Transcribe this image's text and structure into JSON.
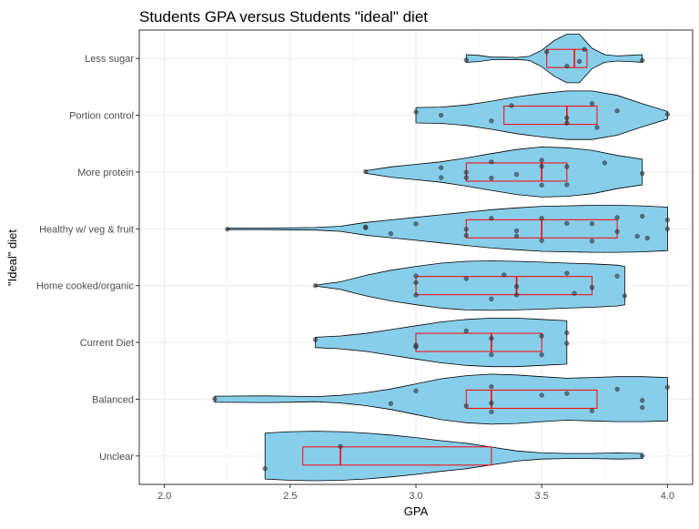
{
  "chart_data": {
    "type": "violin",
    "title": "Students GPA versus Students \"ideal\" diet",
    "xlabel": "GPA",
    "ylabel": "\"Ideal\" diet",
    "xlim": [
      1.9,
      4.1
    ],
    "x_ticks": [
      "2.0",
      "2.5",
      "3.0",
      "3.5",
      "4.0"
    ],
    "grid": true,
    "colors": {
      "violin_fill": "#87CEEB",
      "violin_stroke": "#000000",
      "box": "#FF0000",
      "point": "#333333",
      "grid": "#EBEBEB",
      "panel_border": "#333333"
    },
    "categories": [
      "Less sugar",
      "Portion control",
      "More protein",
      "Healthy w/ veg & fruit",
      "Home cooked/organic",
      "Current Diet",
      "Balanced",
      "Unclear"
    ],
    "groups": [
      {
        "category": "Less sugar",
        "box": {
          "q1": 3.52,
          "median": 3.63,
          "q3": 3.68
        },
        "density": [
          [
            3.2,
            0.15
          ],
          [
            3.25,
            0.12
          ],
          [
            3.3,
            0.05
          ],
          [
            3.35,
            0.05
          ],
          [
            3.4,
            0.04
          ],
          [
            3.45,
            0.08
          ],
          [
            3.5,
            0.32
          ],
          [
            3.55,
            0.7
          ],
          [
            3.6,
            0.95
          ],
          [
            3.65,
            0.95
          ],
          [
            3.7,
            0.4
          ],
          [
            3.75,
            0.15
          ],
          [
            3.8,
            0.1
          ],
          [
            3.85,
            0.12
          ],
          [
            3.9,
            0.15
          ]
        ],
        "points": [
          3.2,
          3.52,
          3.6,
          3.65,
          3.67,
          3.9
        ]
      },
      {
        "category": "Portion control",
        "box": {
          "q1": 3.35,
          "median": 3.6,
          "q3": 3.72
        },
        "density": [
          [
            3.0,
            0.3
          ],
          [
            3.1,
            0.32
          ],
          [
            3.2,
            0.4
          ],
          [
            3.3,
            0.55
          ],
          [
            3.4,
            0.72
          ],
          [
            3.5,
            0.85
          ],
          [
            3.6,
            0.95
          ],
          [
            3.7,
            0.95
          ],
          [
            3.8,
            0.78
          ],
          [
            3.9,
            0.45
          ],
          [
            4.0,
            0.15
          ]
        ],
        "points": [
          3.0,
          3.1,
          3.3,
          3.38,
          3.6,
          3.6,
          3.7,
          3.72,
          3.8,
          4.0
        ]
      },
      {
        "category": "More protein",
        "box": {
          "q1": 3.2,
          "median": 3.5,
          "q3": 3.6
        },
        "density": [
          [
            2.8,
            0.05
          ],
          [
            2.9,
            0.2
          ],
          [
            3.0,
            0.3
          ],
          [
            3.1,
            0.4
          ],
          [
            3.2,
            0.55
          ],
          [
            3.3,
            0.72
          ],
          [
            3.4,
            0.88
          ],
          [
            3.5,
            0.98
          ],
          [
            3.6,
            0.95
          ],
          [
            3.7,
            0.85
          ],
          [
            3.8,
            0.65
          ],
          [
            3.9,
            0.5
          ]
        ],
        "points": [
          2.8,
          3.1,
          3.1,
          3.2,
          3.2,
          3.3,
          3.3,
          3.4,
          3.5,
          3.5,
          3.5,
          3.6,
          3.6,
          3.75,
          3.9
        ]
      },
      {
        "category": "Healthy w/ veg & fruit",
        "box": {
          "q1": 3.2,
          "median": 3.5,
          "q3": 3.8
        },
        "density": [
          [
            2.25,
            0.03
          ],
          [
            2.4,
            0.03
          ],
          [
            2.6,
            0.05
          ],
          [
            2.7,
            0.1
          ],
          [
            2.8,
            0.25
          ],
          [
            2.9,
            0.35
          ],
          [
            3.0,
            0.45
          ],
          [
            3.1,
            0.55
          ],
          [
            3.2,
            0.65
          ],
          [
            3.3,
            0.75
          ],
          [
            3.4,
            0.82
          ],
          [
            3.5,
            0.88
          ],
          [
            3.6,
            0.9
          ],
          [
            3.7,
            0.92
          ],
          [
            3.8,
            0.92
          ],
          [
            3.9,
            0.9
          ],
          [
            4.0,
            0.85
          ]
        ],
        "points": [
          2.25,
          2.8,
          2.8,
          2.9,
          3.0,
          3.2,
          3.2,
          3.3,
          3.4,
          3.4,
          3.5,
          3.5,
          3.6,
          3.7,
          3.7,
          3.8,
          3.8,
          3.88,
          3.9,
          3.92,
          4.0,
          4.0
        ]
      },
      {
        "category": "Home cooked/organic",
        "box": {
          "q1": 3.0,
          "median": 3.4,
          "q3": 3.7
        },
        "density": [
          [
            2.6,
            0.02
          ],
          [
            2.7,
            0.15
          ],
          [
            2.8,
            0.4
          ],
          [
            2.9,
            0.6
          ],
          [
            3.0,
            0.75
          ],
          [
            3.1,
            0.88
          ],
          [
            3.2,
            0.95
          ],
          [
            3.3,
            0.97
          ],
          [
            3.4,
            0.95
          ],
          [
            3.5,
            0.92
          ],
          [
            3.6,
            0.88
          ],
          [
            3.7,
            0.85
          ],
          [
            3.8,
            0.8
          ],
          [
            3.83,
            0.75
          ]
        ],
        "points": [
          2.6,
          3.0,
          3.0,
          3.0,
          3.2,
          3.3,
          3.35,
          3.4,
          3.4,
          3.6,
          3.63,
          3.7,
          3.8,
          3.83
        ]
      },
      {
        "category": "Current Diet",
        "box": {
          "q1": 3.0,
          "median": 3.3,
          "q3": 3.5
        },
        "density": [
          [
            2.6,
            0.2
          ],
          [
            2.7,
            0.25
          ],
          [
            2.8,
            0.35
          ],
          [
            2.9,
            0.5
          ],
          [
            3.0,
            0.65
          ],
          [
            3.1,
            0.8
          ],
          [
            3.2,
            0.9
          ],
          [
            3.3,
            0.95
          ],
          [
            3.4,
            0.95
          ],
          [
            3.5,
            0.9
          ],
          [
            3.6,
            0.85
          ]
        ],
        "points": [
          2.6,
          3.0,
          3.0,
          3.2,
          3.3,
          3.3,
          3.5,
          3.5,
          3.6,
          3.6
        ]
      },
      {
        "category": "Balanced",
        "box": {
          "q1": 3.2,
          "median": 3.3,
          "q3": 3.72
        },
        "density": [
          [
            2.2,
            0.12
          ],
          [
            2.4,
            0.13
          ],
          [
            2.5,
            0.12
          ],
          [
            2.6,
            0.1
          ],
          [
            2.7,
            0.15
          ],
          [
            2.8,
            0.25
          ],
          [
            2.9,
            0.4
          ],
          [
            3.0,
            0.6
          ],
          [
            3.1,
            0.8
          ],
          [
            3.2,
            0.92
          ],
          [
            3.3,
            0.98
          ],
          [
            3.4,
            0.95
          ],
          [
            3.5,
            0.88
          ],
          [
            3.6,
            0.82
          ],
          [
            3.7,
            0.85
          ],
          [
            3.8,
            0.88
          ],
          [
            3.9,
            0.88
          ],
          [
            4.0,
            0.85
          ]
        ],
        "points": [
          2.2,
          2.9,
          3.0,
          3.2,
          3.3,
          3.3,
          3.3,
          3.5,
          3.6,
          3.7,
          3.8,
          3.9,
          3.9,
          4.0
        ]
      },
      {
        "category": "Unclear",
        "box": {
          "q1": 2.55,
          "median": 2.7,
          "q3": 3.3
        },
        "density": [
          [
            2.4,
            0.9
          ],
          [
            2.5,
            0.95
          ],
          [
            2.6,
            0.97
          ],
          [
            2.7,
            0.95
          ],
          [
            2.8,
            0.9
          ],
          [
            2.9,
            0.82
          ],
          [
            3.0,
            0.72
          ],
          [
            3.1,
            0.6
          ],
          [
            3.2,
            0.5
          ],
          [
            3.3,
            0.35
          ],
          [
            3.4,
            0.2
          ],
          [
            3.5,
            0.12
          ],
          [
            3.6,
            0.1
          ],
          [
            3.7,
            0.1
          ],
          [
            3.8,
            0.12
          ],
          [
            3.9,
            0.1
          ]
        ],
        "points": [
          2.4,
          2.7,
          3.9
        ]
      }
    ]
  }
}
